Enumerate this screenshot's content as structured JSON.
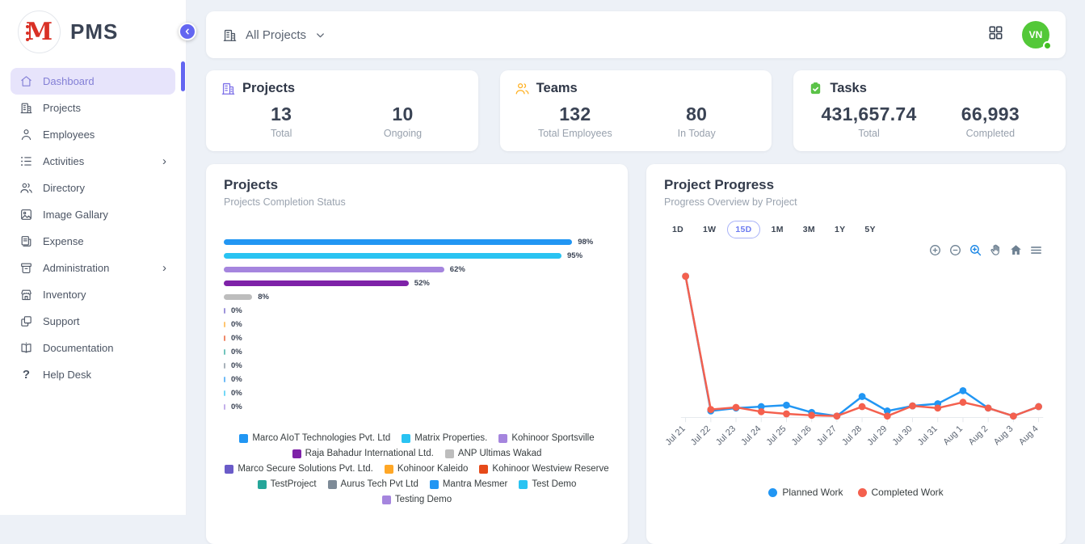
{
  "app": {
    "logo_text": "M",
    "title": "PMS"
  },
  "sidebar": {
    "items": [
      {
        "label": "Dashboard",
        "icon": "home-icon",
        "active": true,
        "chevron": false
      },
      {
        "label": "Projects",
        "icon": "building-icon",
        "active": false,
        "chevron": false
      },
      {
        "label": "Employees",
        "icon": "person-icon",
        "active": false,
        "chevron": false
      },
      {
        "label": "Activities",
        "icon": "list-icon",
        "active": false,
        "chevron": true
      },
      {
        "label": "Directory",
        "icon": "people-icon",
        "active": false,
        "chevron": false
      },
      {
        "label": "Image Gallary",
        "icon": "image-icon",
        "active": false,
        "chevron": false
      },
      {
        "label": "Expense",
        "icon": "receipt-icon",
        "active": false,
        "chevron": false
      },
      {
        "label": "Administration",
        "icon": "archive-icon",
        "active": false,
        "chevron": true
      },
      {
        "label": "Inventory",
        "icon": "store-icon",
        "active": false,
        "chevron": false
      },
      {
        "label": "Support",
        "icon": "copy-icon",
        "active": false,
        "chevron": false
      },
      {
        "label": "Documentation",
        "icon": "book-icon",
        "active": false,
        "chevron": false
      },
      {
        "label": "Help Desk",
        "icon": "question-icon",
        "active": false,
        "chevron": false
      }
    ]
  },
  "topbar": {
    "project_filter": "All Projects",
    "avatar_initials": "VN"
  },
  "stats": [
    {
      "title": "Projects",
      "icon": "building-icon",
      "icon_color": "#7C6FE8",
      "metrics": [
        {
          "value": "13",
          "label": "Total"
        },
        {
          "value": "10",
          "label": "Ongoing"
        }
      ]
    },
    {
      "title": "Teams",
      "icon": "people-icon",
      "icon_color": "#FFB020",
      "metrics": [
        {
          "value": "132",
          "label": "Total Employees"
        },
        {
          "value": "80",
          "label": "In Today"
        }
      ]
    },
    {
      "title": "Tasks",
      "icon": "clipboard-check-icon",
      "icon_color": "#5BC248",
      "metrics": [
        {
          "value": "431,657.74",
          "label": "Total"
        },
        {
          "value": "66,993",
          "label": "Completed"
        }
      ]
    }
  ],
  "projects_card": {
    "title": "Projects",
    "subtitle": "Projects Completion Status"
  },
  "progress_card": {
    "title": "Project Progress",
    "subtitle": "Progress Overview by Project",
    "ranges": [
      "1D",
      "1W",
      "15D",
      "1M",
      "3M",
      "1Y",
      "5Y"
    ],
    "active_range": "15D",
    "toolbar_icons": [
      "zoom-in-icon",
      "zoom-out-icon",
      "selection-zoom-icon",
      "pan-icon",
      "home-icon",
      "menu-icon"
    ]
  },
  "chart_data": [
    {
      "type": "bar",
      "orientation": "horizontal",
      "title": "Projects Completion Status",
      "categories": [
        "Marco AIoT Technologies Pvt. Ltd",
        "Matrix Properties.",
        "Kohinoor Sportsville",
        "Raja Bahadur International Ltd.",
        "ANP Ultimas Wakad",
        "Marco Secure Solutions Pvt. Ltd.",
        "Kohinoor Kaleido",
        "Kohinoor Westview Reserve",
        "TestProject",
        "Aurus Tech Pvt Ltd",
        "Mantra Mesmer",
        "Test Demo",
        "Testing Demo"
      ],
      "values": [
        98,
        95,
        62,
        52,
        8,
        0,
        0,
        0,
        0,
        0,
        0,
        0,
        0
      ],
      "colors": [
        "#2196F3",
        "#29C3F2",
        "#A585DE",
        "#7E22A8",
        "#BDBDBD",
        "#6A5BC8",
        "#FFA726",
        "#E64A19",
        "#26A69A",
        "#7D8A97",
        "#2196F3",
        "#29C3F2",
        "#A585DE"
      ],
      "value_suffix": "%",
      "xlim": [
        0,
        100
      ],
      "legend_position": "bottom"
    },
    {
      "type": "line",
      "title": "Progress Overview by Project",
      "x": [
        "Jul 21",
        "Jul 22",
        "Jul 23",
        "Jul 24",
        "Jul 25",
        "Jul 26",
        "Jul 27",
        "Jul 28",
        "Jul 29",
        "Jul 30",
        "Jul 31",
        "Aug 1",
        "Aug 2",
        "Aug 3",
        "Aug 4"
      ],
      "series": [
        {
          "name": "Planned Work",
          "color": "#2196F3",
          "values": [
            97,
            4,
            6,
            7,
            8,
            3,
            0.5,
            14,
            4,
            7.5,
            9,
            18,
            6,
            0.5,
            7
          ]
        },
        {
          "name": "Completed Work",
          "color": "#F4604E",
          "values": [
            97,
            5,
            6.5,
            3.5,
            2,
            1,
            0.5,
            7,
            0.5,
            7.5,
            6,
            10,
            6,
            0.5,
            7
          ]
        }
      ],
      "ylim": [
        0,
        100
      ],
      "grid": false,
      "legend_position": "bottom"
    }
  ]
}
